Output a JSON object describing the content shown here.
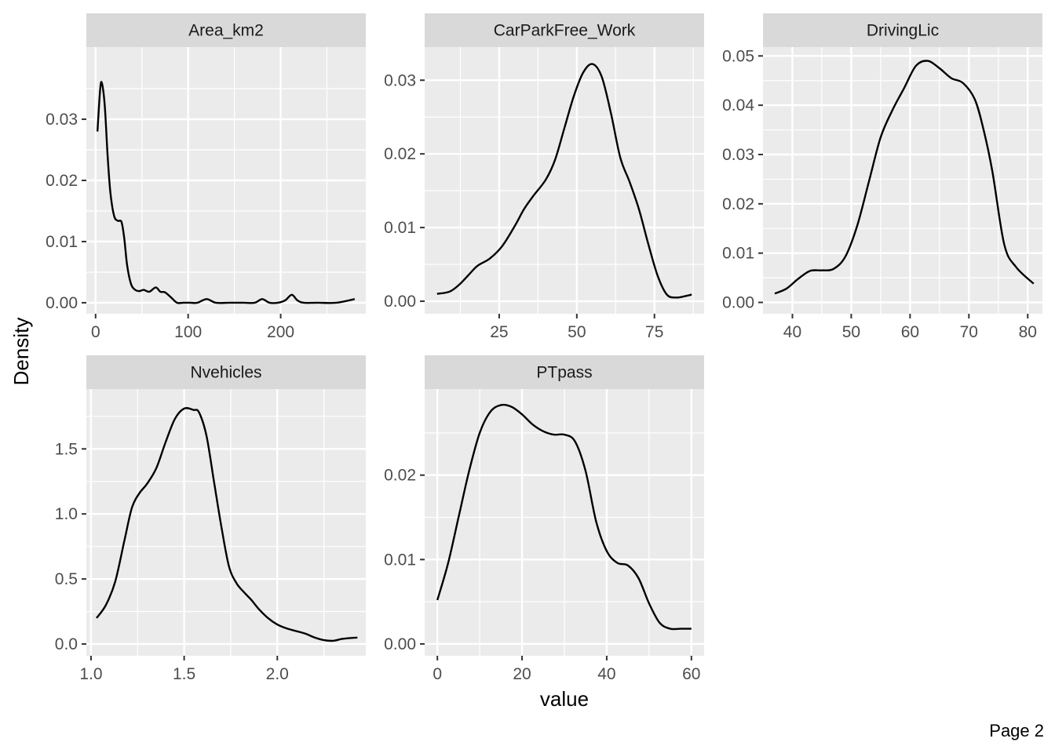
{
  "chart_data": {
    "type": "line",
    "xlabel": "value",
    "ylabel": "Density",
    "facets": [
      {
        "title": "Area_km2",
        "xlim": [
          -10,
          292
        ],
        "ylim": [
          -0.0018,
          0.0418
        ],
        "xticks": [
          0,
          100,
          200
        ],
        "xtick_labels": [
          "0",
          "100",
          "200"
        ],
        "yticks": [
          0,
          0.01,
          0.02,
          0.03
        ],
        "ytick_labels": [
          "0.00",
          "0.01",
          "0.02",
          "0.03"
        ],
        "x": [
          2,
          5,
          7,
          10,
          13,
          16,
          20,
          24,
          28,
          31,
          34,
          38,
          42,
          47,
          52,
          58,
          65,
          70,
          75,
          82,
          88,
          95,
          102,
          110,
          120,
          130,
          145,
          160,
          172,
          180,
          188,
          197,
          205,
          212,
          218,
          225,
          240,
          260,
          280
        ],
        "y": [
          0.028,
          0.035,
          0.0358,
          0.032,
          0.024,
          0.018,
          0.0142,
          0.0134,
          0.0132,
          0.0105,
          0.0062,
          0.0032,
          0.0022,
          0.0019,
          0.0021,
          0.0018,
          0.0025,
          0.0018,
          0.0017,
          0.0008,
          0.0,
          0.0,
          0.0,
          0.0,
          0.0006,
          0.0,
          0.0,
          0.0,
          0.0,
          0.0006,
          0.0,
          0.0,
          0.0004,
          0.0013,
          0.0004,
          0.0,
          0.0,
          0.0,
          0.0006
        ]
      },
      {
        "title": "CarParkFree_Work",
        "xlim": [
          1,
          91
        ],
        "ylim": [
          -0.0017,
          0.0345
        ],
        "xticks": [
          25,
          50,
          75
        ],
        "xtick_labels": [
          "25",
          "50",
          "75"
        ],
        "yticks": [
          0,
          0.01,
          0.02,
          0.03
        ],
        "ytick_labels": [
          "0.00",
          "0.01",
          "0.02",
          "0.03"
        ],
        "x": [
          5,
          9,
          12,
          15,
          18,
          22,
          26,
          30,
          33,
          36,
          40,
          43,
          46,
          49,
          52,
          55,
          58,
          61,
          64,
          67,
          70,
          73,
          76,
          79,
          82,
          85,
          87
        ],
        "y": [
          0.001,
          0.0013,
          0.0022,
          0.0035,
          0.0048,
          0.0058,
          0.0075,
          0.0102,
          0.0125,
          0.0143,
          0.0165,
          0.0192,
          0.0235,
          0.0278,
          0.031,
          0.0322,
          0.0305,
          0.0255,
          0.0195,
          0.0162,
          0.0125,
          0.0078,
          0.0035,
          0.0009,
          0.0005,
          0.0007,
          0.0009
        ]
      },
      {
        "title": "DrivingLic",
        "xlim": [
          35,
          82.5
        ],
        "ylim": [
          -0.0023,
          0.0518
        ],
        "xticks": [
          40,
          50,
          60,
          70,
          80
        ],
        "xtick_labels": [
          "40",
          "50",
          "60",
          "70",
          "80"
        ],
        "yticks": [
          0,
          0.01,
          0.02,
          0.03,
          0.04,
          0.05
        ],
        "ytick_labels": [
          "0.00",
          "0.01",
          "0.02",
          "0.03",
          "0.04",
          "0.05"
        ],
        "x": [
          37,
          39,
          41,
          43,
          45,
          47,
          49,
          51,
          53,
          55,
          57,
          59,
          61,
          63,
          65,
          67,
          69,
          71,
          72.5,
          74,
          76,
          78,
          81
        ],
        "y": [
          0.0018,
          0.0028,
          0.0048,
          0.0064,
          0.0065,
          0.0068,
          0.0093,
          0.0155,
          0.0245,
          0.0335,
          0.039,
          0.0435,
          0.048,
          0.049,
          0.0475,
          0.0455,
          0.0445,
          0.0412,
          0.035,
          0.0265,
          0.0118,
          0.0072,
          0.0038
        ]
      },
      {
        "title": "Nvehicles",
        "xlim": [
          0.975,
          2.475
        ],
        "ylim": [
          -0.09,
          1.96
        ],
        "xticks": [
          1.0,
          1.5,
          2.0
        ],
        "xtick_labels": [
          "1.0",
          "1.5",
          "2.0"
        ],
        "yticks": [
          0,
          0.5,
          1.0,
          1.5
        ],
        "ytick_labels": [
          "0.0",
          "0.5",
          "1.0",
          "1.5"
        ],
        "x": [
          1.03,
          1.08,
          1.13,
          1.18,
          1.22,
          1.26,
          1.3,
          1.35,
          1.4,
          1.45,
          1.5,
          1.55,
          1.58,
          1.62,
          1.66,
          1.7,
          1.74,
          1.78,
          1.82,
          1.86,
          1.9,
          1.95,
          2.0,
          2.05,
          2.1,
          2.15,
          2.2,
          2.25,
          2.3,
          2.35,
          2.43
        ],
        "y": [
          0.2,
          0.3,
          0.48,
          0.8,
          1.05,
          1.16,
          1.23,
          1.35,
          1.55,
          1.73,
          1.81,
          1.8,
          1.78,
          1.6,
          1.25,
          0.9,
          0.6,
          0.47,
          0.4,
          0.34,
          0.27,
          0.2,
          0.15,
          0.12,
          0.1,
          0.08,
          0.05,
          0.03,
          0.025,
          0.04,
          0.05
        ]
      },
      {
        "title": "PTpass",
        "xlim": [
          -3,
          63
        ],
        "ylim": [
          -0.0014,
          0.0302
        ],
        "xticks": [
          0,
          20,
          40,
          60
        ],
        "xtick_labels": [
          "0",
          "20",
          "40",
          "60"
        ],
        "yticks": [
          0,
          0.01,
          0.02
        ],
        "ytick_labels": [
          "0.00",
          "0.01",
          "0.02"
        ],
        "x": [
          0,
          2.5,
          5,
          7.5,
          10,
          12.5,
          15,
          17.5,
          20,
          22.5,
          25,
          27.5,
          30,
          32.5,
          35,
          37.5,
          40,
          42.5,
          45,
          47.5,
          50,
          52.5,
          55,
          57.5,
          60
        ],
        "y": [
          0.0052,
          0.0095,
          0.015,
          0.0205,
          0.025,
          0.0275,
          0.0283,
          0.0281,
          0.0272,
          0.026,
          0.0252,
          0.0248,
          0.0248,
          0.024,
          0.0205,
          0.0145,
          0.011,
          0.0096,
          0.0093,
          0.0078,
          0.0048,
          0.0025,
          0.0018,
          0.0018,
          0.0018
        ]
      }
    ]
  },
  "footer": {
    "page_label": "Page 2"
  }
}
